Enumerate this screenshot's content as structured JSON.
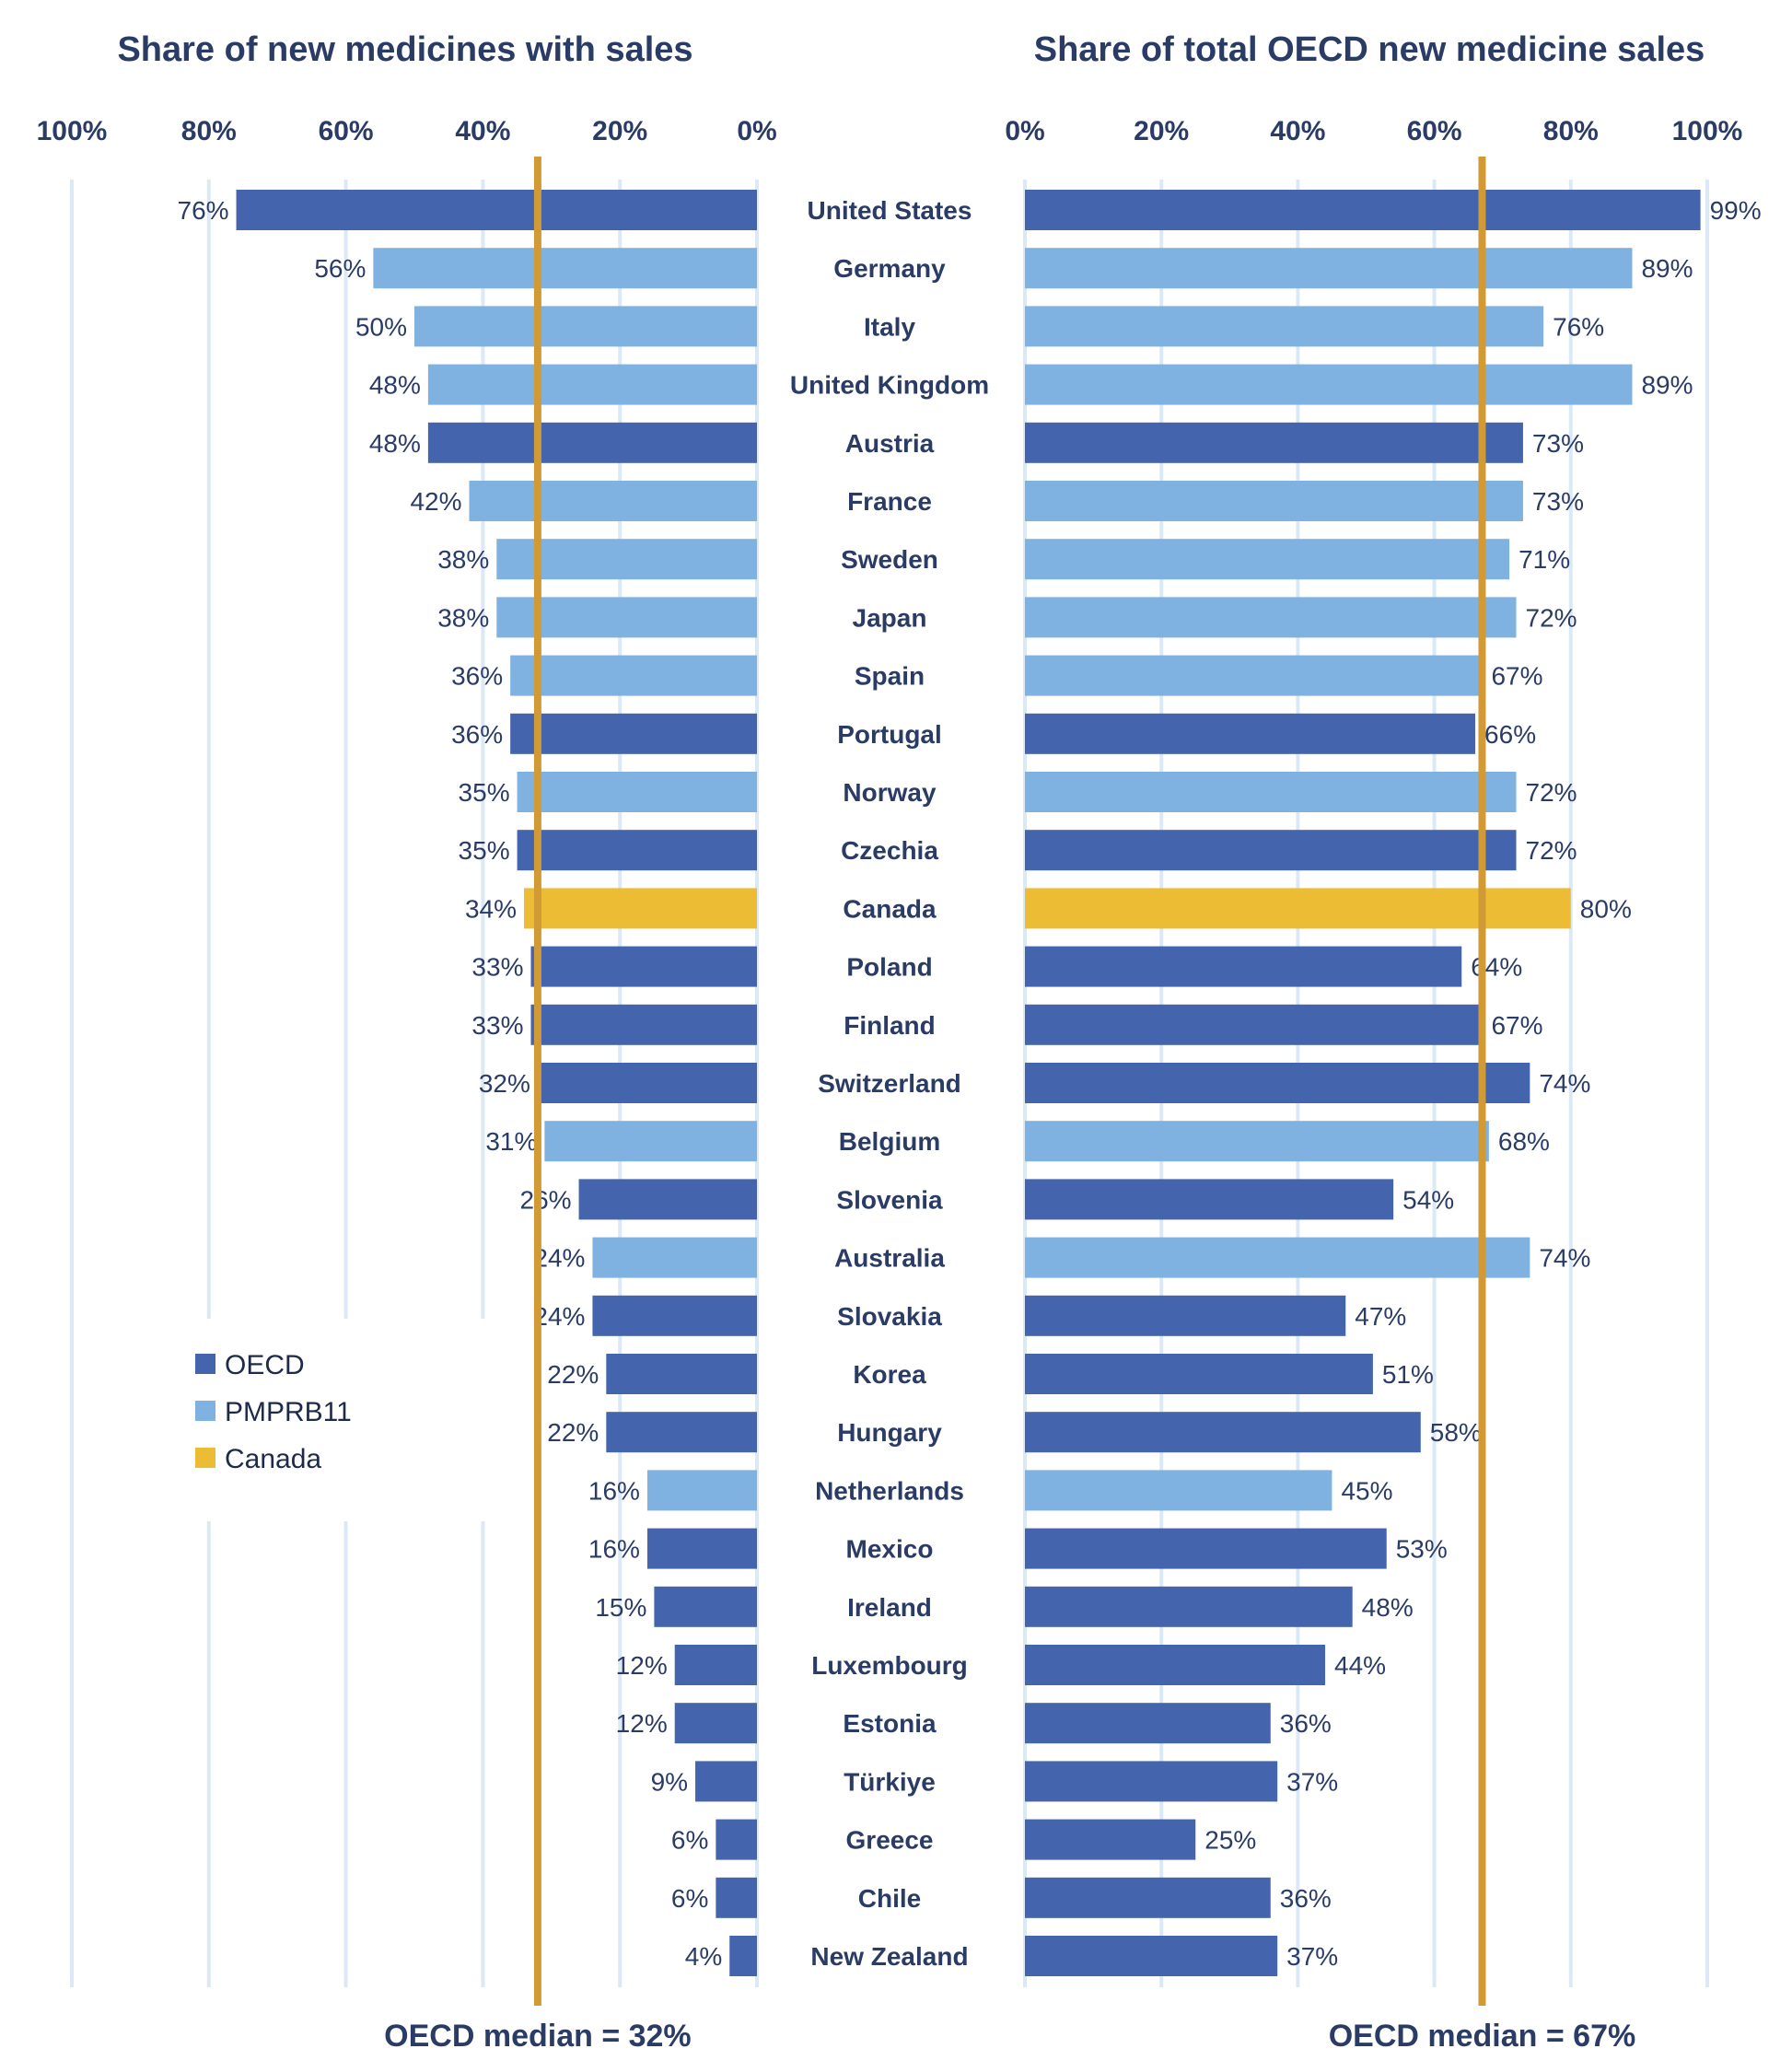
{
  "colors": {
    "OECD": "#4464ad",
    "PMPRB11": "#7fb2e1",
    "Canada": "#ecbc35",
    "median_line": "#d29a35",
    "gridline": "#dbe9f6",
    "text": "#2a3c66"
  },
  "legend": [
    {
      "key": "OECD",
      "label": "OECD"
    },
    {
      "key": "PMPRB11",
      "label": "PMPRB11"
    },
    {
      "key": "Canada",
      "label": "Canada"
    }
  ],
  "chart_data": [
    {
      "type": "bar",
      "orientation": "horizontal-reversed",
      "title": "Share of new medicines with sales",
      "xlim": [
        0,
        100
      ],
      "ticks": [
        "100%",
        "80%",
        "60%",
        "40%",
        "20%",
        "0%"
      ],
      "median_value": 32,
      "median_label": "OECD median = 32%",
      "categories": [
        "United States",
        "Germany",
        "Italy",
        "United Kingdom",
        "Austria",
        "France",
        "Sweden",
        "Japan",
        "Spain",
        "Portugal",
        "Norway",
        "Czechia",
        "Canada",
        "Poland",
        "Finland",
        "Switzerland",
        "Belgium",
        "Slovenia",
        "Australia",
        "Slovakia",
        "Korea",
        "Hungary",
        "Netherlands",
        "Mexico",
        "Ireland",
        "Luxembourg",
        "Estonia",
        "Türkiye",
        "Greece",
        "Chile",
        "New Zealand"
      ],
      "groups": [
        "OECD",
        "PMPRB11",
        "PMPRB11",
        "PMPRB11",
        "OECD",
        "PMPRB11",
        "PMPRB11",
        "PMPRB11",
        "PMPRB11",
        "OECD",
        "PMPRB11",
        "OECD",
        "Canada",
        "OECD",
        "OECD",
        "OECD",
        "PMPRB11",
        "OECD",
        "PMPRB11",
        "OECD",
        "OECD",
        "OECD",
        "PMPRB11",
        "OECD",
        "OECD",
        "OECD",
        "OECD",
        "OECD",
        "OECD",
        "OECD",
        "OECD"
      ],
      "values": [
        76,
        56,
        50,
        48,
        48,
        42,
        38,
        38,
        36,
        36,
        35,
        35,
        34,
        33,
        33,
        32,
        31,
        26,
        24,
        24,
        22,
        22,
        16,
        16,
        15,
        12,
        12,
        9,
        6,
        6,
        4
      ],
      "labels": [
        "76%",
        "56%",
        "50%",
        "48%",
        "48%",
        "42%",
        "38%",
        "38%",
        "36%",
        "36%",
        "35%",
        "35%",
        "34%",
        "33%",
        "33%",
        "32%",
        "31%",
        "26%",
        "24%",
        "24%",
        "22%",
        "22%",
        "16%",
        "16%",
        "15%",
        "12%",
        "12%",
        "9%",
        "6%",
        "6%",
        "4%"
      ]
    },
    {
      "type": "bar",
      "orientation": "horizontal",
      "title": "Share of total OECD new medicine sales",
      "xlim": [
        0,
        100
      ],
      "ticks": [
        "0%",
        "20%",
        "40%",
        "60%",
        "80%",
        "100%"
      ],
      "median_value": 67,
      "median_label": "OECD median = 67%",
      "categories": [
        "United States",
        "Germany",
        "Italy",
        "United Kingdom",
        "Austria",
        "France",
        "Sweden",
        "Japan",
        "Spain",
        "Portugal",
        "Norway",
        "Czechia",
        "Canada",
        "Poland",
        "Finland",
        "Switzerland",
        "Belgium",
        "Slovenia",
        "Australia",
        "Slovakia",
        "Korea",
        "Hungary",
        "Netherlands",
        "Mexico",
        "Ireland",
        "Luxembourg",
        "Estonia",
        "Türkiye",
        "Greece",
        "Chile",
        "New Zealand"
      ],
      "groups": [
        "OECD",
        "PMPRB11",
        "PMPRB11",
        "PMPRB11",
        "OECD",
        "PMPRB11",
        "PMPRB11",
        "PMPRB11",
        "PMPRB11",
        "OECD",
        "PMPRB11",
        "OECD",
        "Canada",
        "OECD",
        "OECD",
        "OECD",
        "PMPRB11",
        "OECD",
        "PMPRB11",
        "OECD",
        "OECD",
        "OECD",
        "PMPRB11",
        "OECD",
        "OECD",
        "OECD",
        "OECD",
        "OECD",
        "OECD",
        "OECD",
        "OECD"
      ],
      "values": [
        99,
        89,
        76,
        89,
        73,
        73,
        71,
        72,
        67,
        66,
        72,
        72,
        80,
        64,
        67,
        74,
        68,
        54,
        74,
        47,
        51,
        58,
        45,
        53,
        48,
        44,
        36,
        37,
        25,
        36,
        37
      ],
      "labels": [
        "99%",
        "89%",
        "76%",
        "89%",
        "73%",
        "73%",
        "71%",
        "72%",
        "67%",
        "66%",
        "72%",
        "72%",
        "80%",
        "64%",
        "67%",
        "74%",
        "68%",
        "54%",
        "74%",
        "47%",
        "51%",
        "58%",
        "45%",
        "53%",
        "48%",
        "44%",
        "36%",
        "37%",
        "25%",
        "36%",
        "37%"
      ]
    }
  ]
}
